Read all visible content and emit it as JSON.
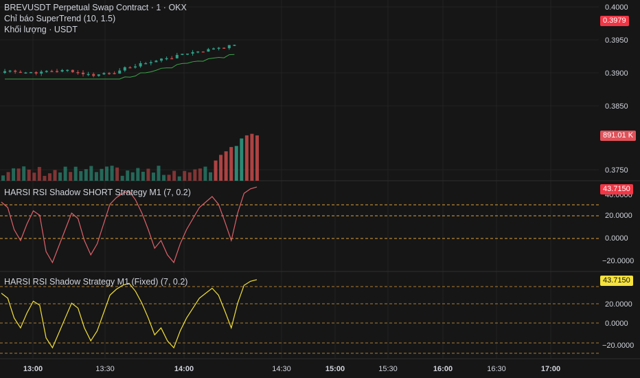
{
  "legend": {
    "symbol_line": "BREVUSDT Perpetual Swap Contract · 1 · OKX",
    "indicator": "Chỉ báo SuperTrend (10, 1.5)",
    "volume": "Khối lượng · USDT"
  },
  "price_axis": {
    "labels": [
      "0.4000",
      "0.3950",
      "0.3900",
      "0.3850",
      "0.3750"
    ],
    "last_price": "0.3979",
    "last_volume": "891.01 K"
  },
  "panes": [
    {
      "title": "HARSI RSI Shadow SHORT Strategy M1 (7, 0.2)",
      "value": "43.7150",
      "color": "#f23645",
      "line_color": "#e0626a",
      "labels": [
        "40.0000",
        "20.0000",
        "0.0000",
        "−20.0000"
      ]
    },
    {
      "title": "HARSI RSI Shadow Strategy M1 (Fixed) (7, 0.2)",
      "value": "43.7150",
      "color": "#f5e23c",
      "line_color": "#f5e23c",
      "labels": [
        "20.0000",
        "0.0000",
        "−20.0000"
      ]
    }
  ],
  "time_axis": [
    {
      "label": "13:00",
      "bold": true
    },
    {
      "label": "13:30",
      "bold": false
    },
    {
      "label": "14:00",
      "bold": true
    },
    {
      "label": "14:30",
      "bold": false
    },
    {
      "label": "15:00",
      "bold": true
    },
    {
      "label": "15:30",
      "bold": false
    },
    {
      "label": "16:00",
      "bold": true
    },
    {
      "label": "16:30",
      "bold": false
    },
    {
      "label": "17:00",
      "bold": true
    }
  ],
  "colors": {
    "up": "#2f9e86",
    "down": "#c94a4a",
    "supertrend_up": "#3ea34a",
    "supertrend_down": "#d13b3b",
    "hline": "#e0a33a",
    "background": "#161616"
  }
}
